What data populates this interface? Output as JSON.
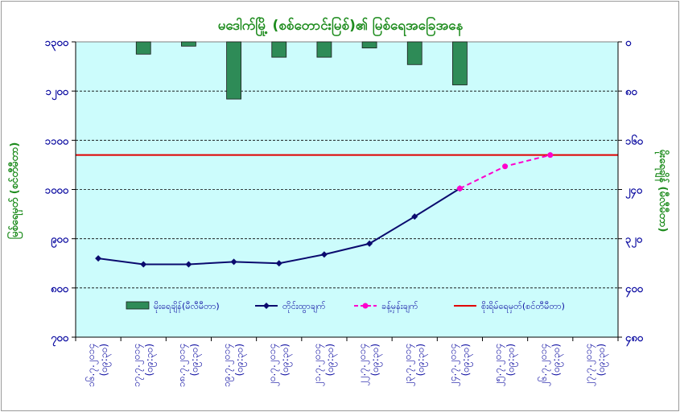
{
  "chart_data": {
    "type": "bar+line",
    "title": "မဒေါက်မြို့ (စစ်တောင်းမြစ်)၏ မြစ်ရေအခြေအနေ",
    "ylabel_left": "မြစ်ရေမှတ် (စင်တီမီတာ)",
    "ylabel_right": "မိုးရေချိန် (မီလီမီတာ)",
    "x": [
      [
        "၁၆.၇.၂၀၁၄",
        "(၀၉:၃၀)"
      ],
      [
        "၁၇.၇.၂၀၁၄",
        "(၀၉:၃၀)"
      ],
      [
        "၁၈.၇.၂၀၁၄",
        "(၀၉:၃၀)"
      ],
      [
        "၁၉.၇.၂၀၁၄",
        "(၀၉:၃၀)"
      ],
      [
        "၂၀.၇.၂၀၁၄",
        "(၀၉:၃၀)"
      ],
      [
        "၂၁.၇.၂၀၁၄",
        "(၀၉:၃၀)"
      ],
      [
        "၂၂.၇.၂၀၁၄",
        "(၀၉:၃၀)"
      ],
      [
        "၂၃.၇.၂၀၁၄",
        "(၀၉:၃၀)"
      ],
      [
        "၂၄.၇.၂၀၁၄",
        "(၀၉:၃၀)"
      ],
      [
        "၂၅.၇.၂၀၁၄",
        "(၀၉:၃၀)"
      ],
      [
        "၂၆.၇.၂၀၁၄",
        "(၀၉:၃၀)"
      ],
      [
        "၂၇.၇.၂၀၁၄",
        "(၀၉:၃၀)"
      ]
    ],
    "left_axis": {
      "min": 700,
      "max": 1300,
      "step": 100,
      "tick_labels": [
        "၁၃၀၀",
        "၁၂၀၀",
        "၁၁၀၀",
        "၁၀၀၀",
        "၉၀၀",
        "၈၀၀",
        "၇၀၀"
      ]
    },
    "right_axis": {
      "min": 0,
      "max": 480,
      "step": 80,
      "reversed": true,
      "tick_labels": [
        "၀",
        "၈၀",
        "၁၆၀",
        "၂၄၀",
        "၃၂၀",
        "၄၀၀",
        "၄၈၀"
      ]
    },
    "series": [
      {
        "name": "မိုးရေချိန်(မီလီမီတာ)",
        "kind": "bar",
        "axis": "right",
        "color": "#2e8b57",
        "values": [
          0,
          20,
          7,
          93,
          25,
          25,
          10,
          37,
          70,
          0,
          0,
          0
        ]
      },
      {
        "name": "တိုင်းထွာချက်",
        "kind": "line",
        "axis": "left",
        "color": "#0a0a6e",
        "values": [
          860,
          848,
          848,
          853,
          850,
          868,
          890,
          945,
          1002,
          null,
          null,
          null
        ]
      },
      {
        "name": "ခန့်မှန်းချက်",
        "kind": "dashed-line",
        "axis": "left",
        "color": "#ff00cc",
        "values": [
          null,
          null,
          null,
          null,
          null,
          null,
          null,
          null,
          1002,
          1047,
          1070,
          null
        ]
      },
      {
        "name": "စိုးရိမ်ရေမှတ်(စင်တီမီတာ)",
        "kind": "hline",
        "axis": "left",
        "color": "#e00000",
        "value": 1070
      }
    ],
    "grid": true,
    "legend_position": "bottom-inside",
    "background": "#ccfcfc"
  }
}
